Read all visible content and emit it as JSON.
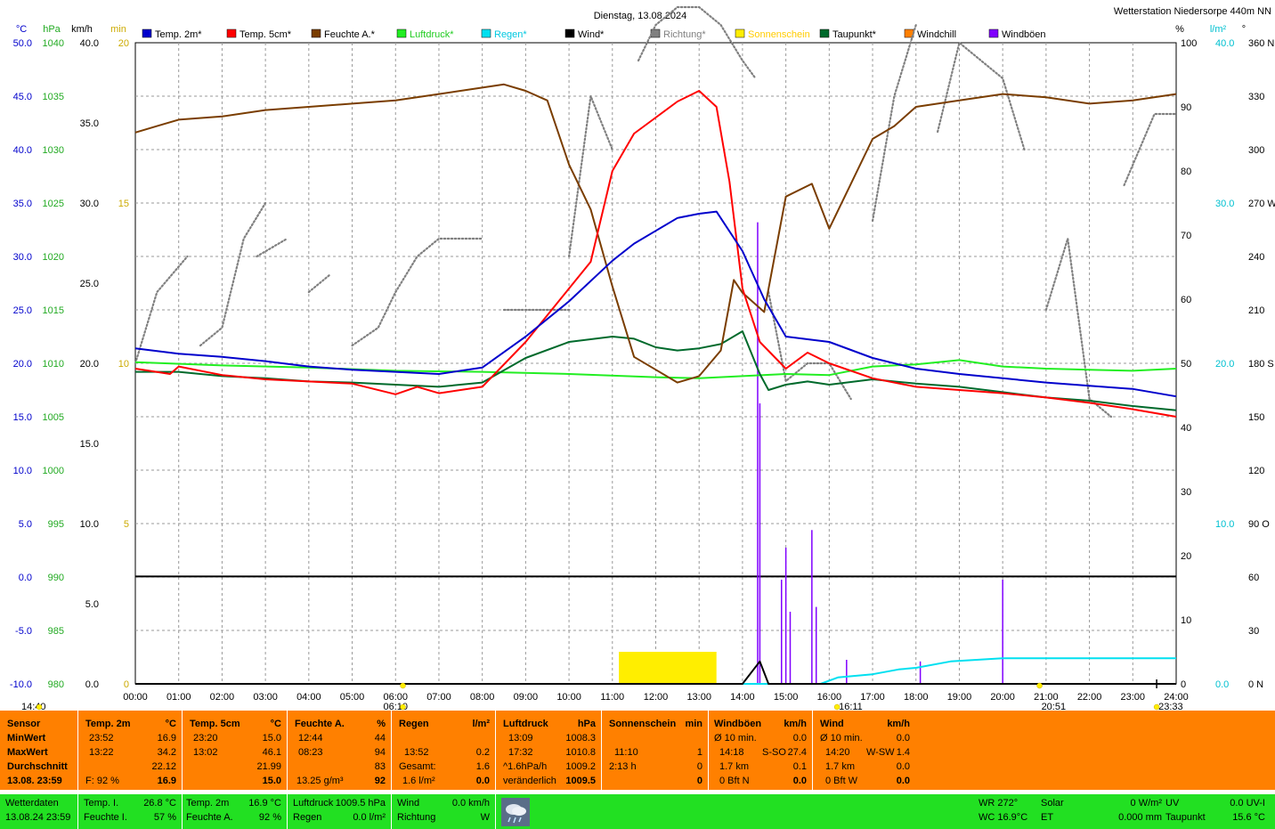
{
  "title": "Dienstag, 13.08.2024",
  "station": "Wetterstation Niedersorpe 440m NN",
  "unit_headers": {
    "temp": "°C",
    "hpa": "hPa",
    "kmh": "km/h",
    "min": "min",
    "pct": "%",
    "lm2": "l/m²",
    "deg": "°"
  },
  "legend": [
    {
      "label": "Temp. 2m*",
      "color": "#0000cc"
    },
    {
      "label": "Temp. 5cm*",
      "color": "#ff0000"
    },
    {
      "label": "Feuchte A.*",
      "color": "#7a3d00"
    },
    {
      "label": "Luftdruck*",
      "color": "#22ee22"
    },
    {
      "label": "Regen*",
      "color": "#00e0f0"
    },
    {
      "label": "Wind*",
      "color": "#000000"
    },
    {
      "label": "Richtung*",
      "color": "#808080"
    },
    {
      "label": "Sonnenschein",
      "color": "#ffee00"
    },
    {
      "label": "Taupunkt*",
      "color": "#006a2c"
    },
    {
      "label": "Windchill",
      "color": "#ff8000"
    },
    {
      "label": "Windböen",
      "color": "#8000ff"
    }
  ],
  "chart_data": {
    "type": "line",
    "x_ticks": [
      "00:00",
      "01:00",
      "02:00",
      "03:00",
      "04:00",
      "05:00",
      "06:00",
      "07:00",
      "08:00",
      "09:00",
      "10:00",
      "11:00",
      "12:00",
      "13:00",
      "14:00",
      "15:00",
      "16:00",
      "17:00",
      "18:00",
      "19:00",
      "20:00",
      "21:00",
      "22:00",
      "23:00",
      "24:00"
    ],
    "axes": {
      "temp": {
        "ticks": [
          "50.0",
          "45.0",
          "40.0",
          "35.0",
          "30.0",
          "25.0",
          "20.0",
          "15.0",
          "10.0",
          "5.0",
          "0.0",
          "-5.0",
          "-10.0"
        ],
        "color": "#0000cc"
      },
      "hpa": {
        "ticks": [
          "1040",
          "1035",
          "1030",
          "1025",
          "1020",
          "1015",
          "1010",
          "1005",
          "1000",
          "995",
          "990",
          "985",
          "980"
        ],
        "color": "#22aa22"
      },
      "kmh": {
        "ticks": [
          "40.0",
          "35.0",
          "30.0",
          "25.0",
          "20.0",
          "15.0",
          "10.0",
          "5.0",
          "0.0"
        ],
        "color": "#000000"
      },
      "min": {
        "ticks": [
          "20",
          "15",
          "10",
          "5",
          "0"
        ],
        "color": "#ccaa00"
      },
      "pct": {
        "ticks": [
          "100",
          "90",
          "80",
          "70",
          "60",
          "50",
          "40",
          "30",
          "20",
          "10",
          "0"
        ],
        "color": "#000000"
      },
      "lm2": {
        "ticks": [
          "40.0",
          "30.0",
          "20.0",
          "10.0",
          "0.0"
        ],
        "color": "#00c0d0"
      },
      "dir": {
        "ticks": [
          "360 N",
          "330",
          "300",
          "270 W",
          "240",
          "210",
          "180 S",
          "150",
          "120",
          "90 O",
          "60",
          "30",
          "0 N"
        ],
        "color": "#000000"
      }
    },
    "series": [
      {
        "name": "Temp. 2m*",
        "color": "#0000cc",
        "axis": "temp",
        "points": [
          [
            0,
            21.4
          ],
          [
            1,
            20.9
          ],
          [
            2,
            20.6
          ],
          [
            3,
            20.2
          ],
          [
            4,
            19.7
          ],
          [
            5,
            19.4
          ],
          [
            6,
            19.2
          ],
          [
            7,
            19.0
          ],
          [
            8,
            19.6
          ],
          [
            9,
            22.5
          ],
          [
            10,
            25.8
          ],
          [
            11,
            29.6
          ],
          [
            11.5,
            31.2
          ],
          [
            12,
            32.4
          ],
          [
            12.5,
            33.6
          ],
          [
            13,
            34.0
          ],
          [
            13.4,
            34.2
          ],
          [
            14,
            30.5
          ],
          [
            14.5,
            26.0
          ],
          [
            15,
            22.5
          ],
          [
            16,
            22.0
          ],
          [
            17,
            20.5
          ],
          [
            18,
            19.5
          ],
          [
            19,
            19.0
          ],
          [
            20,
            18.6
          ],
          [
            21,
            18.2
          ],
          [
            22,
            17.9
          ],
          [
            23,
            17.6
          ],
          [
            24,
            16.9
          ]
        ]
      },
      {
        "name": "Temp. 5cm*",
        "color": "#ff0000",
        "axis": "temp",
        "points": [
          [
            0,
            19.5
          ],
          [
            0.8,
            19.0
          ],
          [
            1,
            19.7
          ],
          [
            2,
            18.9
          ],
          [
            3,
            18.5
          ],
          [
            4,
            18.3
          ],
          [
            5,
            18.1
          ],
          [
            6,
            17.1
          ],
          [
            6.5,
            17.8
          ],
          [
            7,
            17.2
          ],
          [
            8,
            17.8
          ],
          [
            9,
            22.0
          ],
          [
            10,
            27.0
          ],
          [
            10.5,
            29.5
          ],
          [
            11,
            38.0
          ],
          [
            11.5,
            41.5
          ],
          [
            12,
            43.0
          ],
          [
            12.5,
            44.5
          ],
          [
            13,
            45.5
          ],
          [
            13.4,
            44.0
          ],
          [
            13.7,
            37.0
          ],
          [
            14,
            27.0
          ],
          [
            14.4,
            22.0
          ],
          [
            15,
            19.5
          ],
          [
            15.5,
            21.0
          ],
          [
            16,
            20.0
          ],
          [
            17,
            18.6
          ],
          [
            18,
            17.8
          ],
          [
            19,
            17.5
          ],
          [
            20,
            17.2
          ],
          [
            21,
            16.8
          ],
          [
            22,
            16.3
          ],
          [
            23,
            15.7
          ],
          [
            24,
            15.0
          ]
        ]
      },
      {
        "name": "Feuchte A.*",
        "color": "#7a3d00",
        "axis": "pct",
        "points": [
          [
            0,
            86
          ],
          [
            0.5,
            87
          ],
          [
            1,
            88
          ],
          [
            2,
            88.5
          ],
          [
            3,
            89.5
          ],
          [
            4,
            90
          ],
          [
            5,
            90.5
          ],
          [
            6,
            91
          ],
          [
            7,
            92
          ],
          [
            8,
            93
          ],
          [
            8.5,
            93.5
          ],
          [
            9,
            92.5
          ],
          [
            9.5,
            91
          ],
          [
            10,
            81
          ],
          [
            10.5,
            74
          ],
          [
            11,
            62
          ],
          [
            11.5,
            51
          ],
          [
            12,
            49
          ],
          [
            12.5,
            47
          ],
          [
            13,
            48
          ],
          [
            13.5,
            52
          ],
          [
            13.8,
            63
          ],
          [
            14,
            61
          ],
          [
            14.5,
            58
          ],
          [
            15,
            76
          ],
          [
            15.6,
            78
          ],
          [
            16,
            71
          ],
          [
            16.5,
            78
          ],
          [
            17,
            85
          ],
          [
            17.5,
            87
          ],
          [
            18,
            90
          ],
          [
            19,
            91
          ],
          [
            20,
            92
          ],
          [
            21,
            91.5
          ],
          [
            22,
            90.5
          ],
          [
            23,
            91
          ],
          [
            24,
            92
          ]
        ]
      },
      {
        "name": "Luftdruck*",
        "color": "#22ee22",
        "axis": "hpa",
        "points": [
          [
            0,
            1010.1
          ],
          [
            2,
            1009.8
          ],
          [
            4,
            1009.6
          ],
          [
            6,
            1009.3
          ],
          [
            8,
            1009.2
          ],
          [
            10,
            1009.0
          ],
          [
            12,
            1008.7
          ],
          [
            13,
            1008.6
          ],
          [
            14,
            1008.8
          ],
          [
            15,
            1009.0
          ],
          [
            16,
            1008.9
          ],
          [
            17,
            1009.7
          ],
          [
            18,
            1009.9
          ],
          [
            19,
            1010.3
          ],
          [
            20,
            1009.7
          ],
          [
            21,
            1009.5
          ],
          [
            22,
            1009.4
          ],
          [
            23,
            1009.3
          ],
          [
            24,
            1009.5
          ]
        ]
      },
      {
        "name": "Taupunkt*",
        "color": "#006a2c",
        "axis": "temp",
        "points": [
          [
            0,
            19.2
          ],
          [
            1,
            19.2
          ],
          [
            2,
            18.8
          ],
          [
            3,
            18.6
          ],
          [
            4,
            18.3
          ],
          [
            5,
            18.2
          ],
          [
            6,
            18.0
          ],
          [
            7,
            17.8
          ],
          [
            8,
            18.2
          ],
          [
            9,
            20.5
          ],
          [
            10,
            22.0
          ],
          [
            11,
            22.5
          ],
          [
            11.5,
            22.3
          ],
          [
            12,
            21.5
          ],
          [
            12.5,
            21.2
          ],
          [
            13,
            21.4
          ],
          [
            13.5,
            21.8
          ],
          [
            14,
            23.0
          ],
          [
            14.4,
            19.0
          ],
          [
            14.6,
            17.5
          ],
          [
            15,
            18.0
          ],
          [
            15.5,
            18.3
          ],
          [
            16,
            18.0
          ],
          [
            17,
            18.5
          ],
          [
            18,
            18.1
          ],
          [
            19,
            17.8
          ],
          [
            20,
            17.3
          ],
          [
            21,
            16.8
          ],
          [
            22,
            16.5
          ],
          [
            23,
            16.0
          ],
          [
            24,
            15.6
          ]
        ]
      },
      {
        "name": "Regen*",
        "color": "#00e0f0",
        "axis": "lm2",
        "points": [
          [
            0,
            0
          ],
          [
            15.8,
            0
          ],
          [
            16.2,
            0.4
          ],
          [
            17,
            0.6
          ],
          [
            17.6,
            0.9
          ],
          [
            18,
            1.0
          ],
          [
            18.8,
            1.4
          ],
          [
            20,
            1.6
          ],
          [
            24,
            1.6
          ]
        ]
      },
      {
        "name": "Wind*",
        "color": "#000000",
        "axis": "kmh",
        "points": [
          [
            0,
            0
          ],
          [
            14,
            0
          ],
          [
            14.4,
            1.4
          ],
          [
            14.6,
            0
          ],
          [
            24,
            0
          ]
        ]
      }
    ],
    "direction_segments": [
      [
        [
          0,
          18
        ],
        [
          0.5,
          22
        ],
        [
          1.2,
          24
        ]
      ],
      [
        [
          1.5,
          19
        ],
        [
          2,
          20
        ],
        [
          2.5,
          25
        ],
        [
          3,
          27
        ]
      ],
      [
        [
          2.8,
          24
        ],
        [
          3.5,
          25
        ]
      ],
      [
        [
          4,
          22
        ],
        [
          4.5,
          23
        ]
      ],
      [
        [
          5,
          19
        ],
        [
          5.6,
          20
        ],
        [
          6,
          22
        ],
        [
          6.5,
          24
        ],
        [
          7,
          25
        ],
        [
          8,
          25
        ]
      ],
      [
        [
          8.5,
          21
        ],
        [
          9,
          21
        ],
        [
          10,
          21
        ]
      ],
      [
        [
          10,
          24
        ],
        [
          10.5,
          33
        ],
        [
          11,
          30
        ]
      ],
      [
        [
          11.6,
          35
        ],
        [
          12,
          37
        ],
        [
          12.5,
          38
        ],
        [
          13,
          38
        ],
        [
          13.5,
          37
        ],
        [
          14,
          35
        ],
        [
          14.3,
          34
        ]
      ],
      [
        [
          14.6,
          22
        ],
        [
          15,
          17
        ],
        [
          15.5,
          18
        ],
        [
          16,
          18
        ],
        [
          16.5,
          16
        ]
      ],
      [
        [
          17,
          26
        ],
        [
          17.5,
          33
        ],
        [
          18,
          37
        ]
      ],
      [
        [
          18.5,
          31
        ],
        [
          19,
          36
        ],
        [
          20,
          34
        ],
        [
          20.5,
          30
        ]
      ],
      [
        [
          21,
          21
        ],
        [
          21.5,
          25
        ],
        [
          22,
          16
        ],
        [
          22.5,
          15
        ]
      ],
      [
        [
          22.8,
          28
        ],
        [
          23.5,
          32
        ],
        [
          24,
          32
        ]
      ]
    ],
    "gust_events": [
      [
        14.35,
        28.8
      ],
      [
        14.4,
        17.5
      ],
      [
        14.9,
        6.5
      ],
      [
        15.0,
        8.5
      ],
      [
        15.1,
        4.5
      ],
      [
        15.6,
        9.6
      ],
      [
        15.7,
        4.8
      ],
      [
        16.4,
        1.5
      ],
      [
        18.1,
        1.4
      ],
      [
        20.0,
        6.5
      ]
    ],
    "sunshine_blocks": [
      [
        11.15,
        13.4
      ]
    ],
    "wind_reference_kmh": 6.7,
    "time_markers": {
      "left": "14:40",
      "sunrise": "06:10",
      "noon_marker": "16:11",
      "sunset": "20:51",
      "right": "23:33"
    }
  },
  "stats": {
    "sensor": {
      "title": "Sensor",
      "rows": [
        "MinWert",
        "MaxWert",
        "Durchschnitt",
        "13.08. 23:59"
      ]
    },
    "temp2m": {
      "title": "Temp. 2m",
      "unit": "°C",
      "min_t": "23:52",
      "min_v": "16.9",
      "max_t": "13:22",
      "max_v": "34.2",
      "avg": "22.12",
      "cur_f": "F: 92 %",
      "cur": "16.9"
    },
    "temp5cm": {
      "title": "Temp. 5cm",
      "unit": "°C",
      "min_t": "23:20",
      "min_v": "15.0",
      "max_t": "13:02",
      "max_v": "46.1",
      "avg": "21.99",
      "cur": "15.0"
    },
    "feuchte": {
      "title": "Feuchte A.",
      "unit": "%",
      "min_t": "12:44",
      "min_v": "44",
      "max_t": "08:23",
      "max_v": "94",
      "avg": "83",
      "abs": "13.25 g/m³",
      "cur": "92"
    },
    "regen": {
      "title": "Regen",
      "unit": "l/m²",
      "max_t": "13:52",
      "max_v": "0.2",
      "ges_l": "Gesamt:",
      "ges_v": "1.6",
      "rate": "1.6 l/m²",
      "cur": "0.0"
    },
    "luft": {
      "title": "Luftdruck",
      "unit": "hPa",
      "min_t": "13:09",
      "min_v": "1008.3",
      "max_t": "17:32",
      "max_v": "1010.8",
      "tr_l": "^1.6hPa/h",
      "tr_v": "1009.2",
      "state": "veränderlich",
      "cur": "1009.5"
    },
    "sonne": {
      "title": "Sonnenschein",
      "unit": "min",
      "max_t": "11:10",
      "max_v": "1",
      "sum_l": "2:13 h",
      "sum_v": "0",
      "cur": "0"
    },
    "boeen": {
      "title": "Windböen",
      "unit": "km/h",
      "r1": "Ø 10 min.",
      "r1v": "0.0",
      "r2t": "14:18",
      "r2d": "S-SO",
      "r2v": "27.4",
      "r3": "1.7 km",
      "r3v": "0.1",
      "r4": "0 Bft N",
      "r4v": "0.0"
    },
    "wind": {
      "title": "Wind",
      "unit": "km/h",
      "r1": "Ø 10 min.",
      "r1v": "0.0",
      "r2t": "14:20",
      "r2d": "W-SW",
      "r2v": "1.4",
      "r3": "1.7 km",
      "r3v": "0.0",
      "r4": "0 Bft W",
      "r4v": "0.0"
    }
  },
  "footer": {
    "wd_l": "Wetterdaten",
    "wd_d": "13.08.24 23:59",
    "ti_l": "Temp. I.",
    "ti_v": "26.8 °C",
    "fi_l": "Feuchte I.",
    "fi_v": "57 %",
    "t2_l": "Temp. 2m",
    "t2_v": "16.9 °C",
    "fa_l": "Feuchte A.",
    "fa_v": "92 %",
    "lu_l": "Luftdruck",
    "lu_v": "1009.5 hPa",
    "re_l": "Regen",
    "re_v": "0.0 l/m²",
    "wi_l": "Wind",
    "wi_v": "0.0 km/h",
    "ri_l": "Richtung",
    "ri_v": "W",
    "wr": "WR 272°",
    "wc": "WC 16.9°C",
    "so_l": "Solar",
    "so_v": "0 W/m²",
    "et_l": "ET",
    "et_v": "0.000 mm",
    "uv_l": "UV",
    "uv_v": "0.0 UV-I",
    "tp_l": "Taupunkt",
    "tp_v": "15.6 °C"
  }
}
